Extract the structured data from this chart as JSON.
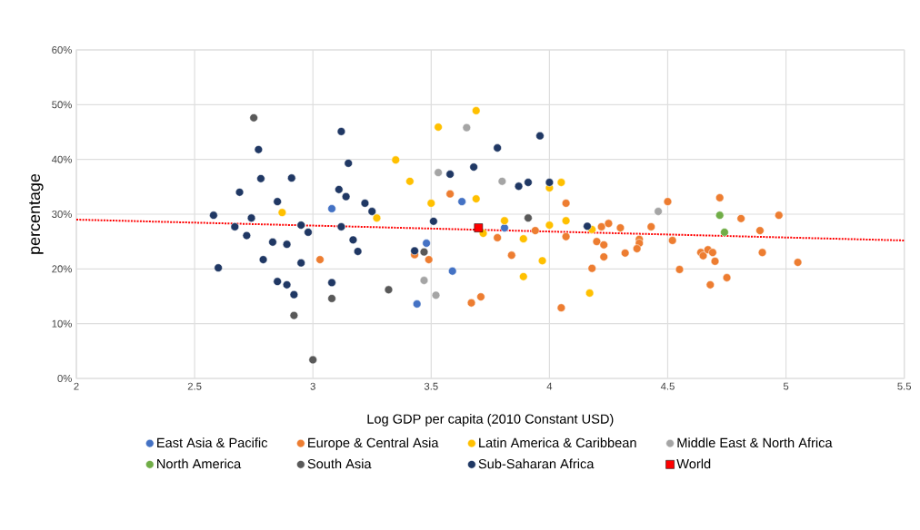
{
  "chart_data": {
    "type": "scatter",
    "xlabel": "Log GDP per capita (2010 Constant USD)",
    "ylabel": "percentage",
    "xlim": [
      2,
      5.5
    ],
    "xticks": [
      2,
      2.5,
      3,
      3.5,
      4,
      4.5,
      5,
      5.5
    ],
    "ylim": [
      0,
      60
    ],
    "yticks": [
      {
        "value": 0,
        "label": "0%"
      },
      {
        "value": 10,
        "label": "10%"
      },
      {
        "value": 20,
        "label": "20%"
      },
      {
        "value": 30,
        "label": "30%"
      },
      {
        "value": 40,
        "label": "40%"
      },
      {
        "value": 50,
        "label": "50%"
      },
      {
        "value": 60,
        "label": "60%"
      }
    ],
    "grid": true,
    "legend": "bottom",
    "marker": "circle",
    "series": [
      {
        "name": "East Asia & Pacific",
        "color": "#4472c4",
        "x": [
          3.08,
          3.63,
          3.48,
          3.59,
          3.44,
          3.81
        ],
        "values": [
          31.0,
          32.3,
          24.7,
          19.6,
          13.6,
          27.5
        ]
      },
      {
        "name": "Europe & Central Asia",
        "color": "#ed7d31",
        "x": [
          3.03,
          3.43,
          3.49,
          3.58,
          3.78,
          3.84,
          3.71,
          3.67,
          3.94,
          4.07,
          4.07,
          4.05,
          4.22,
          4.25,
          4.3,
          4.2,
          4.23,
          4.23,
          4.18,
          4.32,
          4.38,
          4.38,
          4.37,
          4.43,
          4.5,
          4.52,
          4.55,
          4.72,
          4.81,
          4.89,
          4.64,
          4.65,
          4.67,
          4.69,
          4.7,
          4.75,
          4.68,
          4.9,
          4.97,
          5.05
        ],
        "values": [
          21.7,
          22.6,
          21.7,
          33.7,
          25.7,
          22.5,
          14.9,
          13.8,
          27.0,
          32.0,
          25.9,
          12.9,
          27.7,
          28.3,
          27.5,
          25.0,
          24.4,
          22.2,
          20.1,
          22.9,
          25.4,
          24.7,
          23.7,
          27.7,
          32.3,
          25.2,
          19.9,
          33.0,
          29.2,
          27.0,
          23.0,
          22.4,
          23.5,
          23.0,
          21.4,
          18.4,
          17.1,
          23.0,
          29.8,
          21.2
        ]
      },
      {
        "name": "Latin America & Caribbean",
        "color": "#ffc000",
        "x": [
          2.87,
          3.27,
          3.35,
          3.69,
          3.53,
          3.41,
          3.5,
          3.69,
          3.72,
          3.81,
          3.89,
          3.97,
          3.89,
          4.0,
          4.05,
          4.0,
          4.07,
          4.17,
          4.18
        ],
        "values": [
          30.3,
          29.3,
          39.9,
          48.9,
          45.9,
          36.0,
          32.0,
          32.8,
          26.5,
          28.8,
          25.5,
          21.5,
          18.6,
          34.8,
          35.8,
          28.0,
          28.8,
          15.6,
          27.2
        ]
      },
      {
        "name": "Middle East & North Africa",
        "color": "#a5a5a5",
        "x": [
          3.65,
          3.53,
          3.8,
          3.47,
          3.52,
          4.46
        ],
        "values": [
          45.8,
          37.6,
          36.0,
          17.9,
          15.2,
          30.5
        ]
      },
      {
        "name": "North America",
        "color": "#70ad47",
        "x": [
          4.72,
          4.74
        ],
        "values": [
          29.8,
          26.7
        ]
      },
      {
        "name": "South Asia",
        "color": "#595959",
        "x": [
          2.75,
          2.92,
          3.08,
          3.0,
          3.32,
          3.47,
          3.91
        ],
        "values": [
          47.6,
          11.5,
          14.6,
          3.4,
          16.2,
          23.1,
          29.3
        ]
      },
      {
        "name": "Sub-Saharan Africa",
        "color": "#203864",
        "x": [
          2.58,
          2.6,
          2.69,
          2.67,
          2.72,
          2.74,
          2.77,
          2.78,
          2.79,
          2.83,
          2.85,
          2.85,
          2.89,
          2.89,
          2.91,
          2.92,
          2.95,
          2.95,
          2.98,
          3.08,
          3.11,
          3.12,
          3.12,
          3.14,
          3.15,
          3.17,
          3.19,
          3.22,
          3.25,
          3.43,
          3.51,
          3.58,
          3.68,
          3.78,
          3.87,
          3.91,
          3.96,
          4.0,
          4.16
        ],
        "values": [
          29.8,
          20.2,
          34.0,
          27.7,
          26.1,
          29.3,
          41.8,
          36.5,
          21.7,
          24.9,
          32.3,
          17.7,
          24.5,
          17.1,
          36.6,
          15.3,
          28.0,
          21.1,
          26.7,
          17.5,
          34.5,
          45.1,
          27.7,
          33.2,
          39.3,
          25.3,
          23.2,
          32.0,
          30.5,
          23.3,
          28.7,
          37.3,
          38.6,
          42.1,
          35.1,
          35.8,
          44.3,
          35.8,
          27.8
        ]
      },
      {
        "name": "World",
        "color": "#ff0000",
        "marker": "square",
        "x": [
          3.7
        ],
        "values": [
          27.5
        ]
      },
      {
        "type": "line",
        "color": "#ff0000",
        "line_style": "dotted",
        "marker": "none",
        "x": [
          2,
          5.5
        ],
        "values": [
          29.0,
          25.2
        ]
      }
    ]
  }
}
